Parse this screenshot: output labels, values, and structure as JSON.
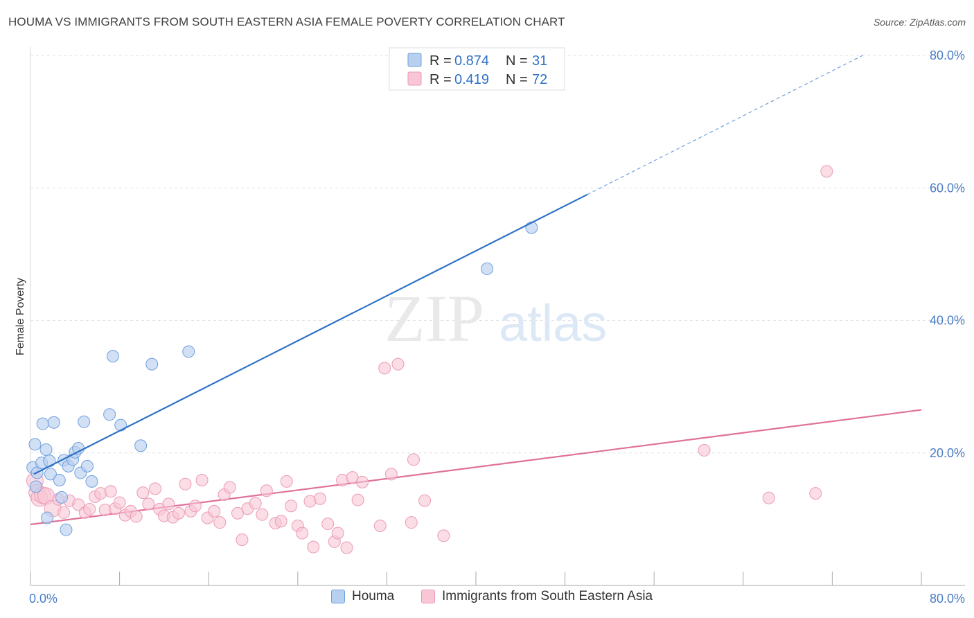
{
  "title": "HOUMA VS IMMIGRANTS FROM SOUTH EASTERN ASIA FEMALE POVERTY CORRELATION CHART",
  "source": "Source: ZipAtlas.com",
  "watermark": {
    "zip": "ZIP",
    "atlas": "atlas"
  },
  "legend": {
    "r_label": "R =",
    "n_label": "N =",
    "entries": [
      {
        "r": "0.874",
        "n": "31"
      },
      {
        "r": "0.419",
        "n": "72"
      }
    ]
  },
  "colors": {
    "houma_fill": "#b8d0f0",
    "houma_stroke": "#6f9fdc",
    "houma_line": "#2f72c8",
    "sea_fill": "#f8c6d5",
    "sea_stroke": "#ec9ab5",
    "sea_line": "#e0709a",
    "tick_text": "#4a7cc7",
    "grid": "#e2e2e2"
  },
  "chart_data": {
    "type": "scatter",
    "title": "HOUMA VS IMMIGRANTS FROM SOUTH EASTERN ASIA FEMALE POVERTY CORRELATION CHART",
    "xlabel": "",
    "ylabel": "Female Poverty",
    "xlim": [
      0,
      80
    ],
    "ylim": [
      0,
      80
    ],
    "x_tick_labels": [
      "0.0%",
      "80.0%"
    ],
    "y_tick_labels": [
      "20.0%",
      "40.0%",
      "60.0%",
      "80.0%"
    ],
    "y_ticks": [
      20,
      40,
      60,
      80
    ],
    "grid": true,
    "legend_placement": "top-center",
    "series": [
      {
        "name": "Houma",
        "r": 0.874,
        "n": 31,
        "trend": {
          "x0": 0.3,
          "y0": 16.8,
          "x1": 50,
          "y1": 59,
          "dashed_to_x": 75
        },
        "points": [
          [
            0.2,
            17.8
          ],
          [
            0.4,
            21.3
          ],
          [
            0.5,
            14.9
          ],
          [
            0.6,
            17.0
          ],
          [
            1.0,
            18.5
          ],
          [
            1.1,
            24.4
          ],
          [
            1.4,
            20.5
          ],
          [
            1.5,
            10.2
          ],
          [
            1.7,
            18.8
          ],
          [
            1.8,
            16.8
          ],
          [
            2.1,
            24.6
          ],
          [
            2.6,
            15.9
          ],
          [
            2.8,
            13.3
          ],
          [
            3.0,
            18.9
          ],
          [
            3.2,
            8.4
          ],
          [
            3.4,
            18.0
          ],
          [
            3.8,
            19.0
          ],
          [
            4.0,
            20.1
          ],
          [
            4.3,
            20.7
          ],
          [
            4.5,
            17.0
          ],
          [
            4.8,
            24.7
          ],
          [
            5.1,
            18.0
          ],
          [
            5.5,
            15.7
          ],
          [
            7.1,
            25.8
          ],
          [
            7.4,
            34.6
          ],
          [
            8.1,
            24.2
          ],
          [
            9.9,
            21.1
          ],
          [
            10.9,
            33.4
          ],
          [
            14.2,
            35.3
          ],
          [
            41.0,
            47.8
          ],
          [
            45.0,
            54.0
          ]
        ]
      },
      {
        "name": "Immigrants from South Eastern Asia",
        "r": 0.419,
        "n": 72,
        "trend": {
          "x0": 0,
          "y0": 9.2,
          "x1": 80,
          "y1": 26.5
        },
        "points": [
          [
            0.4,
            15.8
          ],
          [
            0.6,
            14.0
          ],
          [
            0.8,
            13.2
          ],
          [
            1.1,
            13.6
          ],
          [
            1.4,
            13.5
          ],
          [
            2.0,
            11.6
          ],
          [
            2.5,
            13.0
          ],
          [
            3.0,
            11.0
          ],
          [
            3.5,
            12.8
          ],
          [
            4.3,
            12.2
          ],
          [
            4.9,
            11.0
          ],
          [
            5.3,
            11.5
          ],
          [
            5.8,
            13.4
          ],
          [
            6.3,
            13.9
          ],
          [
            6.7,
            11.4
          ],
          [
            7.2,
            14.2
          ],
          [
            7.6,
            11.6
          ],
          [
            8.0,
            12.5
          ],
          [
            8.5,
            10.6
          ],
          [
            9.0,
            11.2
          ],
          [
            9.5,
            10.4
          ],
          [
            10.1,
            14.0
          ],
          [
            10.6,
            12.3
          ],
          [
            11.2,
            14.6
          ],
          [
            11.6,
            11.5
          ],
          [
            12.0,
            10.5
          ],
          [
            12.4,
            12.3
          ],
          [
            12.8,
            10.3
          ],
          [
            13.3,
            10.9
          ],
          [
            13.9,
            15.3
          ],
          [
            14.4,
            11.2
          ],
          [
            14.8,
            12.0
          ],
          [
            15.4,
            15.9
          ],
          [
            15.9,
            10.2
          ],
          [
            16.5,
            11.2
          ],
          [
            17.0,
            9.5
          ],
          [
            17.4,
            13.7
          ],
          [
            17.9,
            14.8
          ],
          [
            18.6,
            10.9
          ],
          [
            19.0,
            6.9
          ],
          [
            19.5,
            11.6
          ],
          [
            20.2,
            12.4
          ],
          [
            20.8,
            10.7
          ],
          [
            21.2,
            14.3
          ],
          [
            22.0,
            9.4
          ],
          [
            22.5,
            9.7
          ],
          [
            23.0,
            15.7
          ],
          [
            23.4,
            12.0
          ],
          [
            24.0,
            9.0
          ],
          [
            24.4,
            7.9
          ],
          [
            25.1,
            12.7
          ],
          [
            25.4,
            5.8
          ],
          [
            26.0,
            13.1
          ],
          [
            26.7,
            9.3
          ],
          [
            27.3,
            6.6
          ],
          [
            27.6,
            7.9
          ],
          [
            28.0,
            15.9
          ],
          [
            28.4,
            5.7
          ],
          [
            28.9,
            16.3
          ],
          [
            29.4,
            12.9
          ],
          [
            29.8,
            15.6
          ],
          [
            31.4,
            9.0
          ],
          [
            31.8,
            32.8
          ],
          [
            32.4,
            16.8
          ],
          [
            33.0,
            33.4
          ],
          [
            34.2,
            9.5
          ],
          [
            34.4,
            19.0
          ],
          [
            35.4,
            12.8
          ],
          [
            37.1,
            7.5
          ],
          [
            60.5,
            20.4
          ],
          [
            66.3,
            13.2
          ],
          [
            70.5,
            13.9
          ],
          [
            71.5,
            62.5
          ]
        ]
      }
    ]
  }
}
